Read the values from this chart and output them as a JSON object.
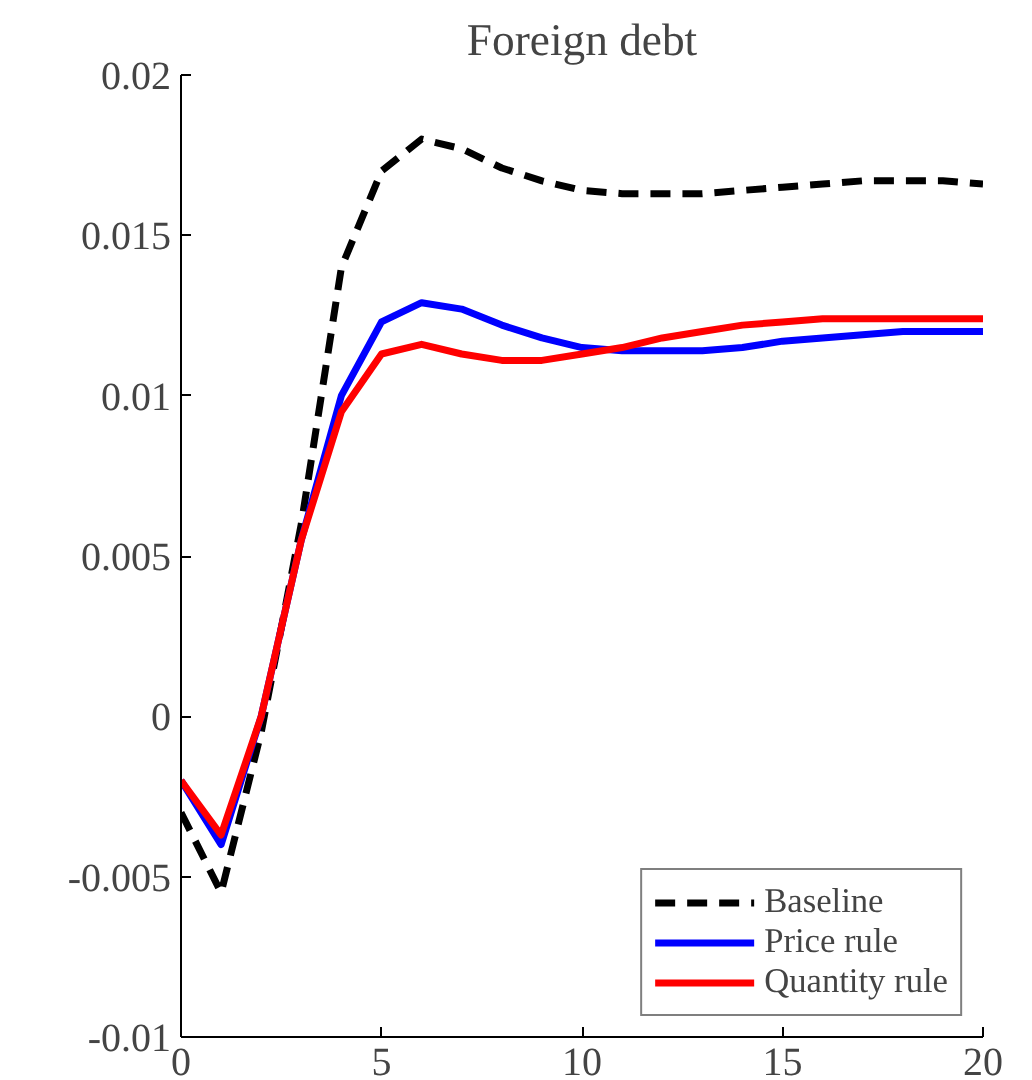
{
  "chart_data": {
    "type": "line",
    "title": "Foreign debt",
    "x": [
      0,
      1,
      2,
      3,
      4,
      5,
      6,
      7,
      8,
      9,
      10,
      11,
      12,
      13,
      14,
      15,
      16,
      17,
      18,
      19,
      20
    ],
    "series": [
      {
        "name": "Baseline",
        "color": "#000000",
        "line_style": "dashed",
        "values": [
          -0.003,
          -0.0055,
          -0.0005,
          0.006,
          0.014,
          0.017,
          0.018,
          0.0177,
          0.0171,
          0.0167,
          0.0164,
          0.0163,
          0.0163,
          0.0163,
          0.0164,
          0.0165,
          0.0166,
          0.0167,
          0.0167,
          0.0167,
          0.0166
        ]
      },
      {
        "name": "Price rule",
        "color": "#0000ff",
        "line_style": "solid",
        "values": [
          -0.002,
          -0.004,
          0,
          0.0055,
          0.01,
          0.0123,
          0.0129,
          0.0127,
          0.0122,
          0.0118,
          0.0115,
          0.0114,
          0.0114,
          0.0114,
          0.0115,
          0.0117,
          0.0118,
          0.0119,
          0.012,
          0.012,
          0.012
        ]
      },
      {
        "name": "Quantity rule",
        "color": "#ff0000",
        "line_style": "solid",
        "values": [
          -0.002,
          -0.0037,
          0,
          0.0055,
          0.0095,
          0.0113,
          0.0116,
          0.0113,
          0.0111,
          0.0111,
          0.0113,
          0.0115,
          0.0118,
          0.012,
          0.0122,
          0.0123,
          0.0124,
          0.0124,
          0.0124,
          0.0124,
          0.0124
        ]
      }
    ],
    "xlim": [
      0,
      20
    ],
    "xticks": [
      0,
      5,
      10,
      15,
      20
    ],
    "ylim": [
      -0.01,
      0.02
    ],
    "yticks": [
      -0.01,
      -0.005,
      0,
      0.005,
      0.01,
      0.015,
      0.02
    ],
    "grid": false,
    "legend": "bottom right",
    "marker": "none"
  }
}
